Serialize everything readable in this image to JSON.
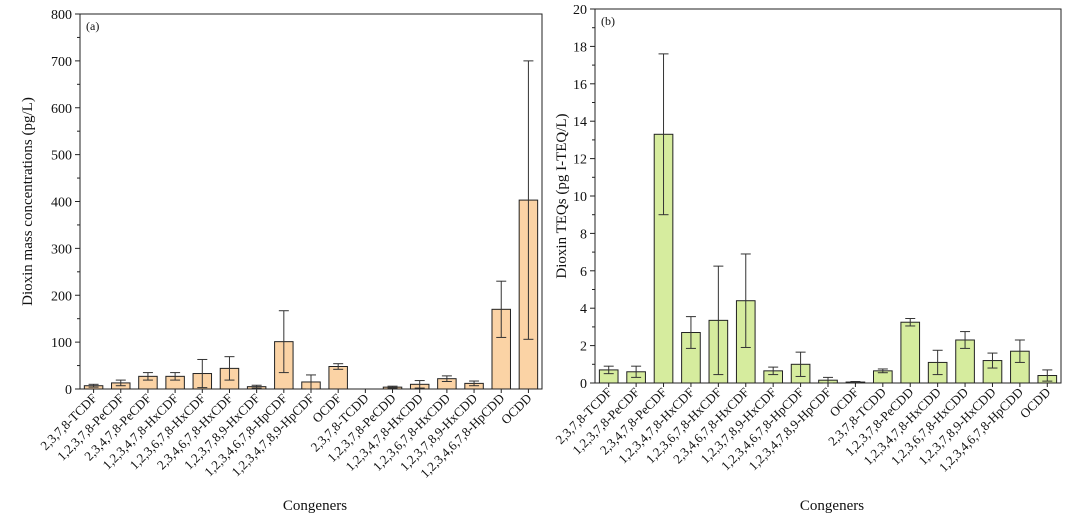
{
  "colors": {
    "bar_a": "#fbd3a5",
    "bar_b": "#d6ec9e",
    "stroke": "#222222",
    "error": "#333333"
  },
  "chart_data": [
    {
      "type": "bar",
      "panel": "(a)",
      "xlabel": "Congeners",
      "ylabel": "Dioxin mass concentrations (pg/L)",
      "ylim": [
        0,
        800
      ],
      "yticks": [
        "0",
        "100",
        "200",
        "300",
        "400",
        "500",
        "600",
        "700",
        "800"
      ],
      "grid": false,
      "categories": [
        "2,3,7,8-TCDF",
        "1,2,3,7,8-PeCDF",
        "2,3,4,7,8-PeCDF",
        "1,2,3,4,7,8-HxCDF",
        "1,2,3,6,7,8-HxCDF",
        "2,3,4,6,7,8-HxCDF",
        "1,2,3,7,8,9-HxCDF",
        "1,2,3,4,6,7,8-HpCDF",
        "1,2,3,4,7,8,9-HpCDF",
        "OCDF",
        "2,3,7,8-TCDD",
        "1,2,3,7,8-PeCDD",
        "1,2,3,4,7,8-HxCDD",
        "1,2,3,6,7,8-HxCDD",
        "1,2,3,7,8,9-HxCDD",
        "1,2,3,4,6,7,8-HpCDD",
        "OCDD"
      ],
      "values": [
        7,
        13,
        27,
        27,
        33,
        44,
        5,
        101,
        15,
        48,
        0,
        4,
        10,
        22,
        12,
        170,
        403
      ],
      "errors": [
        3,
        6,
        8,
        8,
        30,
        25,
        3,
        66,
        15,
        6,
        0,
        2,
        8,
        6,
        5,
        60,
        297
      ]
    },
    {
      "type": "bar",
      "panel": "(b)",
      "xlabel": "Congeners",
      "ylabel": "Dioxin TEQs (pg I-TEQ/L)",
      "ylim": [
        0,
        20
      ],
      "yticks": [
        "0",
        "2",
        "4",
        "6",
        "8",
        "10",
        "12",
        "14",
        "16",
        "18",
        "20"
      ],
      "grid": false,
      "categories": [
        "2,3,7,8-TCDF",
        "1,2,3,7,8-PeCDF",
        "2,3,4,7,8-PeCDF",
        "1,2,3,4,7,8-HxCDF",
        "1,2,3,6,7,8-HxCDF",
        "2,3,4,6,7,8-HxCDF",
        "1,2,3,7,8,9-HxCDF",
        "1,2,3,4,6,7,8-HpCDF",
        "1,2,3,4,7,8,9-HpCDF",
        "OCDF",
        "2,3,7,8-TCDD",
        "1,2,3,7,8-PeCDD",
        "1,2,3,4,7,8-HxCDD",
        "1,2,3,6,7,8-HxCDD",
        "1,2,3,7,8,9-HxCDD",
        "1,2,3,4,6,7,8-HpCDD",
        "OCDD"
      ],
      "values": [
        0.7,
        0.6,
        13.3,
        2.7,
        3.35,
        4.4,
        0.65,
        1.0,
        0.15,
        0.05,
        0.65,
        3.25,
        1.1,
        2.3,
        1.2,
        1.7,
        0.4
      ],
      "errors": [
        0.2,
        0.3,
        4.3,
        0.85,
        2.9,
        2.5,
        0.2,
        0.65,
        0.15,
        0.03,
        0.1,
        0.2,
        0.65,
        0.45,
        0.4,
        0.6,
        0.3
      ]
    }
  ]
}
